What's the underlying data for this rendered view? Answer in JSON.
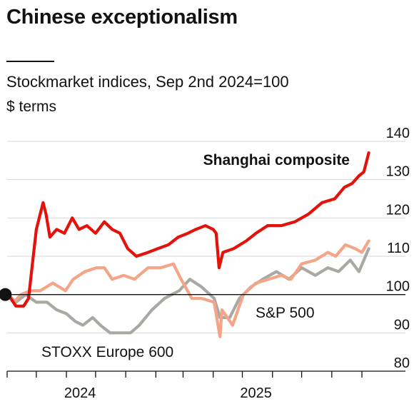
{
  "header": {
    "title": "Chinese exceptionalism",
    "subtitle": "Stockmarket indices, Sep 2nd 2024=100",
    "unit": "$ terms"
  },
  "chart_data": {
    "type": "line",
    "title": "Chinese exceptionalism",
    "subtitle": "Stockmarket indices, Sep 2nd 2024=100",
    "ylabel": "$ terms",
    "ylim": [
      80,
      140
    ],
    "yticks": [
      80,
      90,
      100,
      110,
      120,
      130,
      140
    ],
    "xlim": [
      "2024-09-01",
      "2025-09-12"
    ],
    "xlabels": [
      {
        "text": "2024",
        "date": "2024-11-15"
      },
      {
        "text": "2025",
        "date": "2025-05-15"
      }
    ],
    "grid": true,
    "baseline": 100,
    "start_point": {
      "date": "2024-09-02",
      "value": 100
    },
    "series": [
      {
        "name": "Shanghai composite",
        "color": "#e3120b",
        "label_weight": "bold",
        "points": [
          [
            "2024-09-02",
            100
          ],
          [
            "2024-09-10",
            97
          ],
          [
            "2024-09-18",
            97
          ],
          [
            "2024-09-23",
            99
          ],
          [
            "2024-09-27",
            108
          ],
          [
            "2024-10-01",
            117
          ],
          [
            "2024-10-08",
            124
          ],
          [
            "2024-10-11",
            121
          ],
          [
            "2024-10-15",
            115
          ],
          [
            "2024-10-22",
            117
          ],
          [
            "2024-10-30",
            116
          ],
          [
            "2024-11-07",
            120
          ],
          [
            "2024-11-14",
            117
          ],
          [
            "2024-11-22",
            118
          ],
          [
            "2024-12-01",
            116
          ],
          [
            "2024-12-10",
            119
          ],
          [
            "2024-12-18",
            117
          ],
          [
            "2024-12-26",
            116
          ],
          [
            "2025-01-03",
            112
          ],
          [
            "2025-01-12",
            110
          ],
          [
            "2025-01-24",
            111
          ],
          [
            "2025-02-03",
            112
          ],
          [
            "2025-02-14",
            113
          ],
          [
            "2025-02-24",
            115
          ],
          [
            "2025-03-06",
            116
          ],
          [
            "2025-03-14",
            117
          ],
          [
            "2025-03-24",
            118
          ],
          [
            "2025-04-01",
            117
          ],
          [
            "2025-04-04",
            116
          ],
          [
            "2025-04-07",
            107
          ],
          [
            "2025-04-11",
            111
          ],
          [
            "2025-04-22",
            112
          ],
          [
            "2025-05-05",
            114
          ],
          [
            "2025-05-15",
            116
          ],
          [
            "2025-05-27",
            118
          ],
          [
            "2025-06-10",
            118
          ],
          [
            "2025-06-24",
            119
          ],
          [
            "2025-07-08",
            121
          ],
          [
            "2025-07-22",
            124
          ],
          [
            "2025-08-04",
            125
          ],
          [
            "2025-08-14",
            128
          ],
          [
            "2025-08-22",
            129
          ],
          [
            "2025-08-29",
            131
          ],
          [
            "2025-09-03",
            132
          ],
          [
            "2025-09-08",
            137
          ]
        ]
      },
      {
        "name": "S&P 500",
        "color": "#f4a487",
        "label_weight": "normal",
        "points": [
          [
            "2024-09-02",
            100
          ],
          [
            "2024-09-08",
            98
          ],
          [
            "2024-09-15",
            100
          ],
          [
            "2024-09-25",
            101
          ],
          [
            "2024-10-05",
            101
          ],
          [
            "2024-10-18",
            103
          ],
          [
            "2024-10-31",
            101
          ],
          [
            "2024-11-08",
            104
          ],
          [
            "2024-11-20",
            106
          ],
          [
            "2024-12-02",
            107
          ],
          [
            "2024-12-10",
            107
          ],
          [
            "2024-12-18",
            104
          ],
          [
            "2024-12-30",
            105
          ],
          [
            "2025-01-10",
            104
          ],
          [
            "2025-01-24",
            107
          ],
          [
            "2025-02-06",
            107
          ],
          [
            "2025-02-19",
            108
          ],
          [
            "2025-02-27",
            104
          ],
          [
            "2025-03-10",
            99
          ],
          [
            "2025-03-20",
            99
          ],
          [
            "2025-04-02",
            98
          ],
          [
            "2025-04-08",
            89
          ],
          [
            "2025-04-10",
            96
          ],
          [
            "2025-04-21",
            92
          ],
          [
            "2025-05-02",
            100
          ],
          [
            "2025-05-15",
            103
          ],
          [
            "2025-05-28",
            104
          ],
          [
            "2025-06-10",
            105
          ],
          [
            "2025-06-20",
            104
          ],
          [
            "2025-07-01",
            108
          ],
          [
            "2025-07-15",
            109
          ],
          [
            "2025-07-28",
            111
          ],
          [
            "2025-08-05",
            110
          ],
          [
            "2025-08-15",
            113
          ],
          [
            "2025-08-25",
            112
          ],
          [
            "2025-09-01",
            111
          ],
          [
            "2025-09-08",
            114
          ]
        ]
      },
      {
        "name": "STOXX Europe 600",
        "color": "#a9a9a3",
        "label_weight": "normal",
        "points": [
          [
            "2024-09-02",
            100
          ],
          [
            "2024-09-10",
            98
          ],
          [
            "2024-09-20",
            100
          ],
          [
            "2024-10-01",
            98
          ],
          [
            "2024-10-12",
            98
          ],
          [
            "2024-10-22",
            96
          ],
          [
            "2024-11-01",
            95
          ],
          [
            "2024-11-10",
            93
          ],
          [
            "2024-11-18",
            92
          ],
          [
            "2024-11-28",
            94
          ],
          [
            "2024-12-06",
            92
          ],
          [
            "2024-12-16",
            90
          ],
          [
            "2024-12-28",
            90
          ],
          [
            "2025-01-06",
            90
          ],
          [
            "2025-01-15",
            92
          ],
          [
            "2025-01-28",
            96
          ],
          [
            "2025-02-10",
            99
          ],
          [
            "2025-02-25",
            101
          ],
          [
            "2025-03-08",
            104
          ],
          [
            "2025-03-20",
            102
          ],
          [
            "2025-04-02",
            99
          ],
          [
            "2025-04-08",
            94
          ],
          [
            "2025-04-18",
            94
          ],
          [
            "2025-04-28",
            99
          ],
          [
            "2025-05-10",
            102
          ],
          [
            "2025-05-22",
            104
          ],
          [
            "2025-06-05",
            106
          ],
          [
            "2025-06-18",
            104
          ],
          [
            "2025-07-01",
            107
          ],
          [
            "2025-07-15",
            105
          ],
          [
            "2025-07-28",
            107
          ],
          [
            "2025-08-08",
            106
          ],
          [
            "2025-08-20",
            109
          ],
          [
            "2025-08-29",
            106
          ],
          [
            "2025-09-08",
            112
          ]
        ]
      }
    ]
  }
}
